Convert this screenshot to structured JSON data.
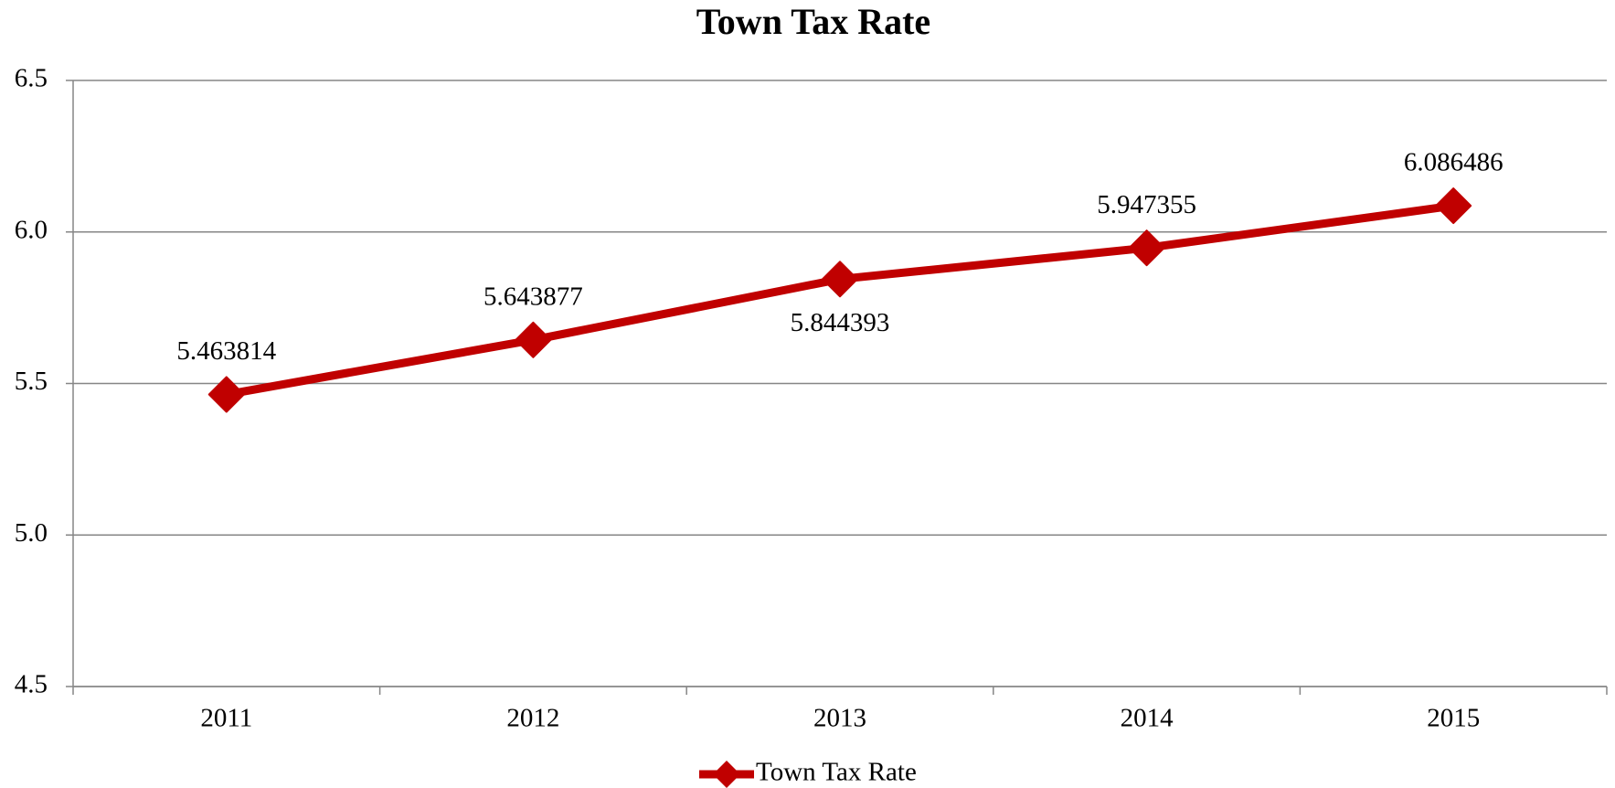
{
  "chart_data": {
    "type": "line",
    "title": "Town Tax Rate",
    "categories": [
      "2011",
      "2012",
      "2013",
      "2014",
      "2015"
    ],
    "series": [
      {
        "name": "Town Tax Rate",
        "color": "#c00000",
        "values": [
          5.463814,
          5.643877,
          5.844393,
          5.947355,
          6.086486
        ]
      }
    ],
    "ylim": [
      4.5,
      6.5
    ],
    "yticks": [
      4.5,
      {
        "value": 5,
        "label": "5.0"
      },
      5.5,
      {
        "value": 6,
        "label": "6.0"
      },
      6.5
    ],
    "grid": true,
    "legend": "bottom"
  }
}
